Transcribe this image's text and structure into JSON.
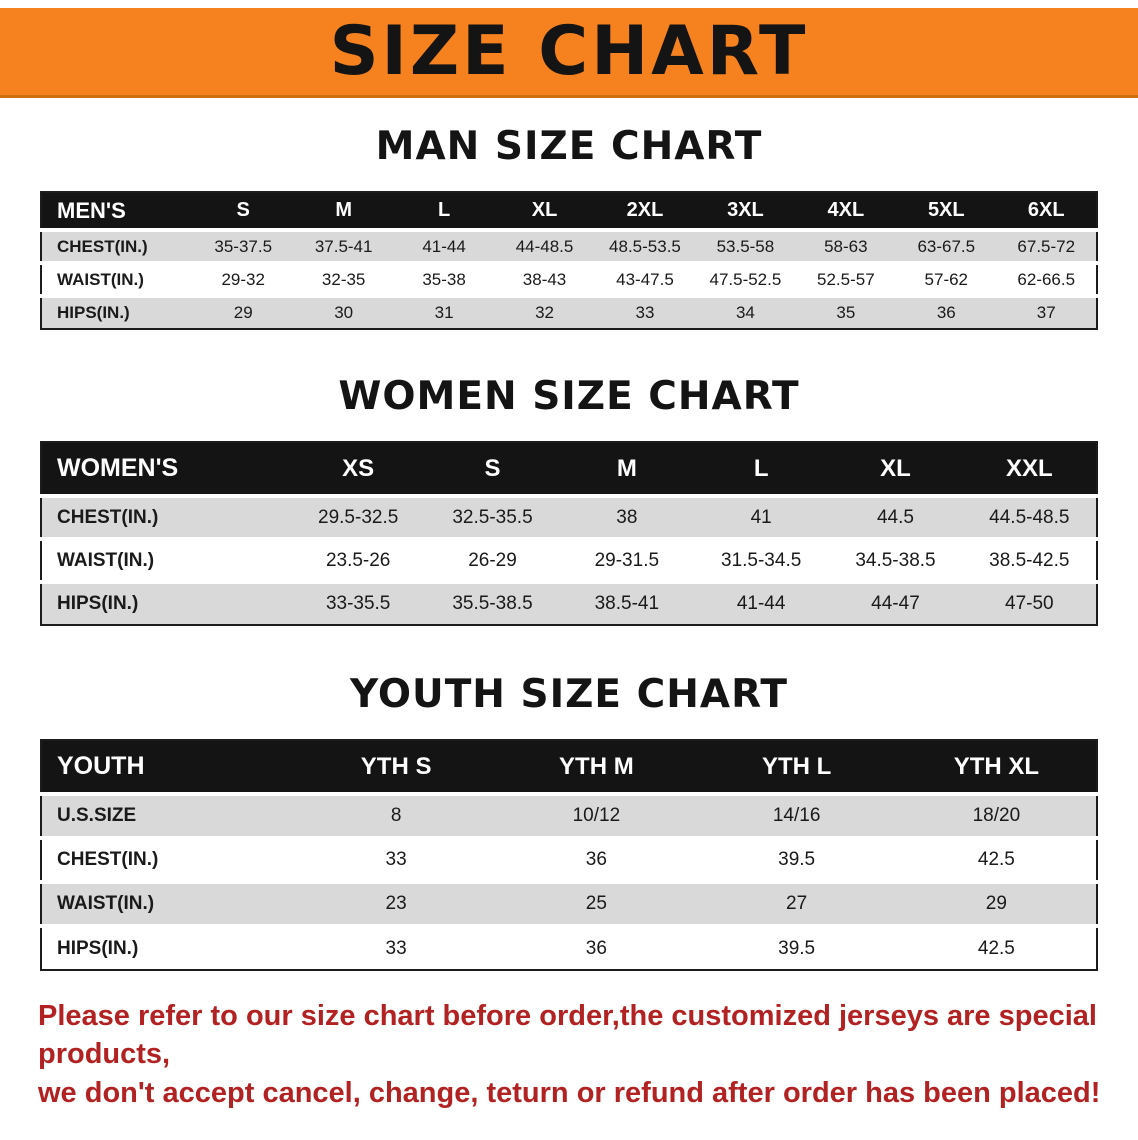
{
  "banner": {
    "title": "SIZE CHART"
  },
  "colors": {
    "banner_bg": "#f5821f",
    "banner_edge": "#cf6f10",
    "header_bg": "#141414",
    "row_gray": "#d9d9d9",
    "footer_red": "#b22222"
  },
  "sections": [
    {
      "name": "men",
      "heading": "MAN SIZE CHART",
      "header": [
        "MEN'S",
        "S",
        "M",
        "L",
        "XL",
        "2XL",
        "3XL",
        "4XL",
        "5XL",
        "6XL"
      ],
      "rows": [
        [
          "CHEST(IN.)",
          "35-37.5",
          "37.5-41",
          "41-44",
          "44-48.5",
          "48.5-53.5",
          "53.5-58",
          "58-63",
          "63-67.5",
          "67.5-72"
        ],
        [
          "WAIST(IN.)",
          "29-32",
          "32-35",
          "35-38",
          "38-43",
          "43-47.5",
          "47.5-52.5",
          "52.5-57",
          "57-62",
          "62-66.5"
        ],
        [
          "HIPS(IN.)",
          "29",
          "30",
          "31",
          "32",
          "33",
          "34",
          "35",
          "36",
          "37"
        ]
      ]
    },
    {
      "name": "women",
      "heading": "WOMEN SIZE CHART",
      "header": [
        "WOMEN'S",
        "XS",
        "S",
        "M",
        "L",
        "XL",
        "XXL"
      ],
      "rows": [
        [
          "CHEST(IN.)",
          "29.5-32.5",
          "32.5-35.5",
          "38",
          "41",
          "44.5",
          "44.5-48.5"
        ],
        [
          "WAIST(IN.)",
          "23.5-26",
          "26-29",
          "29-31.5",
          "31.5-34.5",
          "34.5-38.5",
          "38.5-42.5"
        ],
        [
          "HIPS(IN.)",
          "33-35.5",
          "35.5-38.5",
          "38.5-41",
          "41-44",
          "44-47",
          "47-50"
        ]
      ]
    },
    {
      "name": "youth",
      "heading": "YOUTH SIZE CHART",
      "header": [
        "YOUTH",
        "YTH S",
        "YTH M",
        "YTH L",
        "YTH XL"
      ],
      "rows": [
        [
          "U.S.SIZE",
          "8",
          "10/12",
          "14/16",
          "18/20"
        ],
        [
          "CHEST(IN.)",
          "33",
          "36",
          "39.5",
          "42.5"
        ],
        [
          "WAIST(IN.)",
          "23",
          "25",
          "27",
          "29"
        ],
        [
          "HIPS(IN.)",
          "33",
          "36",
          "39.5",
          "42.5"
        ]
      ]
    }
  ],
  "footer": {
    "line1": "Please refer to our size chart before order,the customized jerseys are special products,",
    "line2": "we don't accept cancel, change, teturn or refund after order has been placed!"
  }
}
